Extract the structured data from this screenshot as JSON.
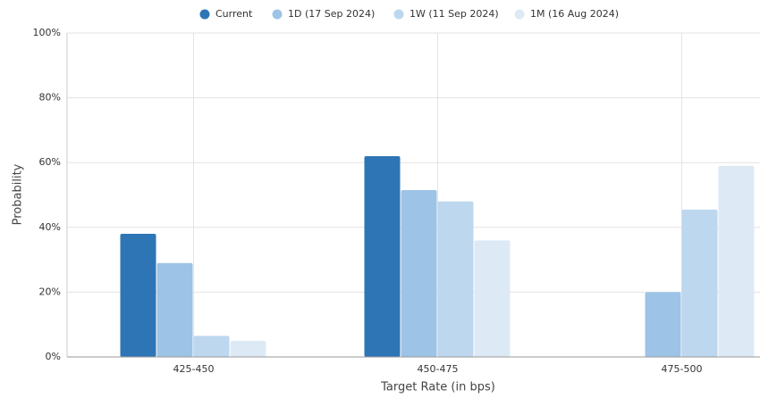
{
  "chart_data": {
    "type": "bar",
    "categories": [
      "425-450",
      "450-475",
      "475-500"
    ],
    "series": [
      {
        "name": "Current",
        "color": "#2e75b6",
        "values": [
          38,
          62,
          0
        ]
      },
      {
        "name": "1D (17 Sep 2024)",
        "color": "#9dc3e6",
        "values": [
          29,
          51.5,
          20
        ]
      },
      {
        "name": "1W (11 Sep 2024)",
        "color": "#bdd7ee",
        "values": [
          6.5,
          48,
          45.5
        ]
      },
      {
        "name": "1M (16 Aug 2024)",
        "color": "#ddeaf6",
        "values": [
          5,
          36,
          59
        ]
      }
    ],
    "x_label": "Target Rate (in bps)",
    "y_label": "Probability",
    "ylim": [
      0,
      100
    ],
    "yticks": [
      {
        "value": 0,
        "label": "0%"
      },
      {
        "value": 20,
        "label": "20%"
      },
      {
        "value": 40,
        "label": "40%"
      },
      {
        "value": 60,
        "label": "60%"
      },
      {
        "value": 80,
        "label": "80%"
      },
      {
        "value": 100,
        "label": "100%"
      }
    ],
    "grid": true,
    "legend": "top"
  }
}
